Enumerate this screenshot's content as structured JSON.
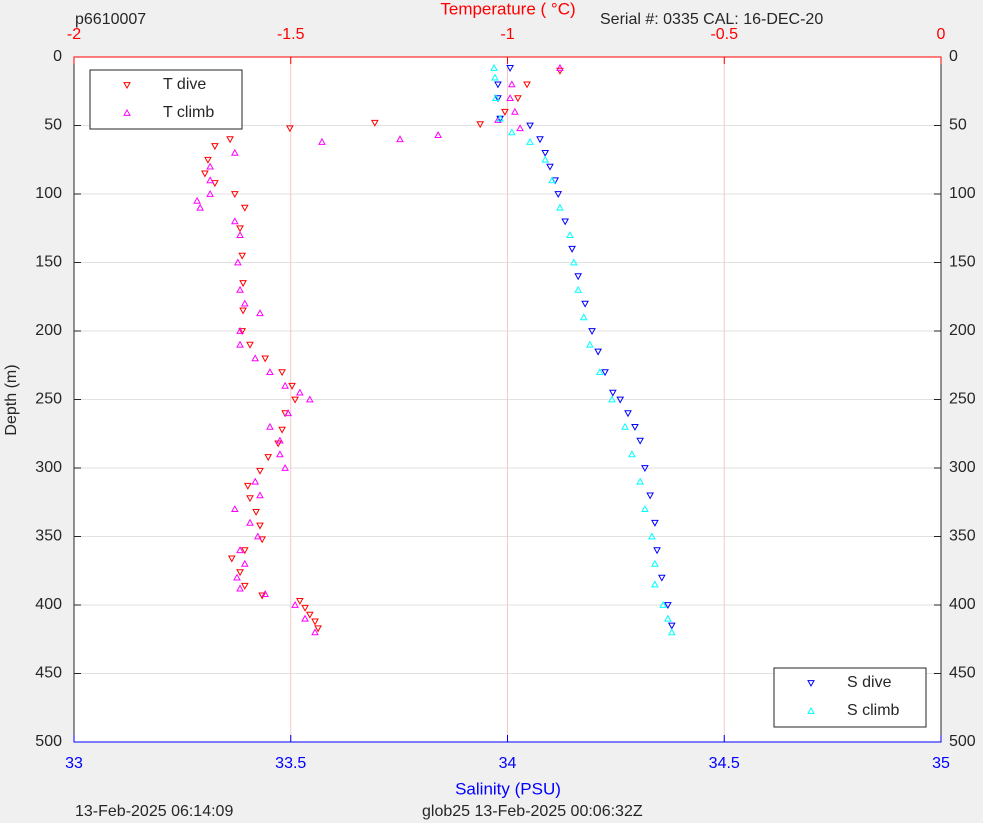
{
  "chart_data": {
    "type": "scatter",
    "header": {
      "left": "p6610007",
      "right": "Serial #: 0335  CAL: 16-DEC-20"
    },
    "footer": {
      "left": "13-Feb-2025 06:14:09",
      "right": "glob25 13-Feb-2025 00:06:32Z"
    },
    "xlabel": "Salinity (PSU)",
    "x2label": "Temperature (   °C)",
    "ylabel": "Depth (m)",
    "xlim": [
      33,
      35
    ],
    "xticks": [
      33,
      33.5,
      34,
      34.5,
      35
    ],
    "xaxis_color": "#0000ff",
    "x2lim": [
      -2,
      0
    ],
    "x2ticks": [
      -2,
      -1.5,
      -1,
      -0.5,
      0
    ],
    "x2axis_color": "#ff0000",
    "ylim": [
      500,
      0
    ],
    "yticks": [
      0,
      50,
      100,
      150,
      200,
      250,
      300,
      350,
      400,
      450,
      500
    ],
    "grid": true,
    "x2grid_color": "#f6c8c8",
    "ygrid_color": "#e2e2e2",
    "legend_location": {
      "x2": "upper left",
      "x": "lower right"
    },
    "series": [
      {
        "name": "T dive",
        "color": "#ff0000",
        "marker": "v",
        "axis": "x2",
        "x": [
          -0.879,
          -0.955,
          -0.976,
          -1.006,
          -1.063,
          -1.306,
          -1.502,
          -1.64,
          -1.675,
          -1.691,
          -1.698,
          -1.675,
          -1.629,
          -1.606,
          -1.617,
          -1.612,
          -1.61,
          -1.61,
          -1.612,
          -1.594,
          -1.559,
          -1.52,
          -1.497,
          -1.49,
          -1.513,
          -1.52,
          -1.529,
          -1.552,
          -1.571,
          -1.599,
          -1.594,
          -1.58,
          -1.571,
          -1.566,
          -1.606,
          -1.636,
          -1.617,
          -1.606,
          -1.566,
          -1.479,
          -1.467,
          -1.456,
          -1.444,
          -1.437
        ],
        "y": [
          10,
          20,
          30,
          40,
          49,
          48,
          52,
          60,
          65,
          75,
          85,
          92,
          100,
          110,
          125,
          145,
          165,
          185,
          200,
          210,
          220,
          230,
          240,
          250,
          260,
          272,
          282,
          292,
          302,
          313,
          322,
          332,
          342,
          352,
          360,
          366,
          376,
          386,
          393,
          397,
          402,
          407,
          412,
          417
        ]
      },
      {
        "name": "T climb",
        "color": "#ff00ff",
        "marker": "^",
        "axis": "x2",
        "x": [
          -1.444,
          -1.467,
          -1.49,
          -1.559,
          -1.617,
          -1.624,
          -1.606,
          -1.617,
          -1.576,
          -1.594,
          -1.629,
          -1.571,
          -1.582,
          -1.513,
          -1.525,
          -1.525,
          -1.548,
          -1.506,
          -1.456,
          -1.479,
          -1.513,
          -1.548,
          -1.582,
          -1.617,
          -1.617,
          -1.571,
          -1.606,
          -1.617,
          -1.622,
          -1.617,
          -1.629,
          -1.709,
          -1.716,
          -1.686,
          -1.686,
          -1.686,
          -1.629,
          -1.428,
          -1.248,
          -1.16,
          -0.971,
          -1.022,
          -0.983,
          -0.994,
          -0.99,
          -0.879
        ],
        "y": [
          420,
          410,
          400,
          392,
          388,
          380,
          370,
          360,
          350,
          340,
          330,
          320,
          310,
          300,
          290,
          280,
          270,
          260,
          250,
          245,
          240,
          230,
          220,
          210,
          200,
          187,
          180,
          170,
          150,
          130,
          120,
          110,
          105,
          100,
          90,
          80,
          70,
          62,
          60,
          57,
          52,
          46,
          40,
          30,
          20,
          8
        ]
      },
      {
        "name": "S dive",
        "color": "#0000ff",
        "marker": "v",
        "axis": "x",
        "x": [
          34.006,
          33.978,
          33.978,
          33.983,
          34.052,
          34.075,
          34.087,
          34.098,
          34.11,
          34.117,
          34.133,
          34.149,
          34.163,
          34.179,
          34.195,
          34.209,
          34.225,
          34.243,
          34.26,
          34.278,
          34.294,
          34.306,
          34.317,
          34.329,
          34.34,
          34.345,
          34.356,
          34.37,
          34.379
        ],
        "y": [
          8,
          20,
          30,
          45,
          50,
          60,
          70,
          80,
          90,
          100,
          120,
          140,
          160,
          180,
          200,
          215,
          230,
          245,
          250,
          260,
          270,
          280,
          300,
          320,
          340,
          360,
          380,
          400,
          415
        ]
      },
      {
        "name": "S climb",
        "color": "#00ffff",
        "marker": "^",
        "axis": "x",
        "x": [
          34.379,
          34.37,
          34.359,
          34.34,
          34.34,
          34.333,
          34.317,
          34.306,
          34.287,
          34.271,
          34.241,
          34.213,
          34.19,
          34.176,
          34.163,
          34.153,
          34.144,
          34.121,
          34.103,
          34.087,
          34.052,
          34.01,
          33.983,
          33.973,
          33.971,
          33.969
        ],
        "y": [
          420,
          410,
          400,
          385,
          370,
          350,
          330,
          310,
          290,
          270,
          250,
          230,
          210,
          190,
          170,
          150,
          130,
          110,
          90,
          75,
          62,
          55,
          45,
          30,
          15,
          8
        ]
      }
    ]
  }
}
